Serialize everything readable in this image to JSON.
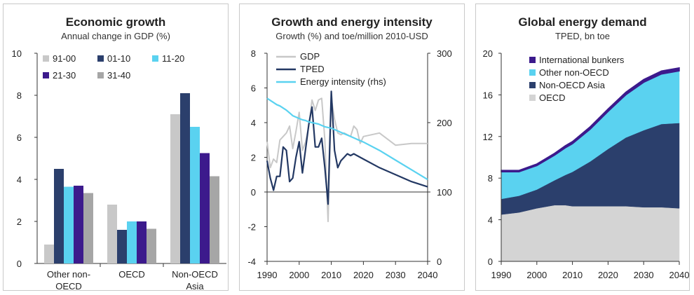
{
  "chart_data": [
    {
      "type": "bar",
      "title": "Economic growth",
      "subtitle": "Annual change in GDP (%)",
      "categories": [
        "Other non-OECD",
        "OECD",
        "Non-OECD Asia"
      ],
      "category_lines": [
        [
          "Other non-",
          "OECD"
        ],
        [
          "OECD"
        ],
        [
          "Non-OECD",
          "Asia"
        ]
      ],
      "series": [
        {
          "name": "91-00",
          "color": "#c8c8c8",
          "values": [
            0.9,
            2.8,
            7.1
          ]
        },
        {
          "name": "01-10",
          "color": "#2b3f6c",
          "values": [
            4.5,
            1.6,
            8.1
          ]
        },
        {
          "name": "11-20",
          "color": "#5ad2f0",
          "values": [
            3.65,
            2.0,
            6.5
          ]
        },
        {
          "name": "21-30",
          "color": "#3c1a8c",
          "values": [
            3.7,
            2.0,
            5.25
          ]
        },
        {
          "name": "31-40",
          "color": "#a6a6a6",
          "values": [
            3.35,
            1.65,
            4.15
          ]
        }
      ],
      "ylim": [
        0,
        10
      ],
      "yticks": [
        "0",
        "2",
        "4",
        "6",
        "8",
        "10"
      ],
      "legend": "top"
    },
    {
      "type": "line",
      "title": "Growth and energy intensity",
      "subtitle": "Growth (%) and toe/million 2010-USD",
      "x": [
        1990,
        1991,
        1992,
        1993,
        1994,
        1995,
        1996,
        1997,
        1998,
        1999,
        2000,
        2001,
        2002,
        2003,
        2004,
        2005,
        2006,
        2007,
        2008,
        2009,
        2010,
        2011,
        2012,
        2013,
        2014,
        2015,
        2016,
        2017,
        2018,
        2019,
        2020,
        2025,
        2030,
        2035,
        2040
      ],
      "xticks": [
        "1990",
        "2000",
        "2010",
        "2020",
        "2030",
        "2040"
      ],
      "xlim": [
        1990,
        2040
      ],
      "ylim": [
        -4,
        8
      ],
      "yticks": [
        "-4",
        "-2",
        "0",
        "2",
        "4",
        "6",
        "8"
      ],
      "y2lim": [
        0,
        300
      ],
      "y2ticks": [
        "0",
        "100",
        "200",
        "300"
      ],
      "series": [
        {
          "name": "GDP",
          "axis": "left",
          "color": "#c8c8c8",
          "y": [
            2.9,
            1.4,
            1.9,
            1.7,
            3.0,
            3.2,
            3.4,
            3.8,
            2.5,
            3.5,
            4.6,
            2.4,
            2.9,
            3.8,
            5.3,
            4.7,
            5.3,
            5.4,
            3.0,
            -1.7,
            5.4,
            4.2,
            3.4,
            3.3,
            3.4,
            3.3,
            3.2,
            3.8,
            3.6,
            2.8,
            3.2,
            3.4,
            2.7,
            2.8,
            2.8
          ]
        },
        {
          "name": "TPED",
          "axis": "left",
          "color": "#233863",
          "y": [
            1.8,
            0.8,
            0.1,
            0.9,
            0.9,
            2.6,
            2.4,
            0.6,
            0.8,
            2.0,
            2.9,
            1.1,
            2.5,
            3.9,
            4.9,
            2.6,
            2.6,
            3.1,
            1.4,
            -0.7,
            5.8,
            2.4,
            1.4,
            1.8,
            2.0,
            2.2,
            2.1,
            2.2,
            2.1,
            2.0,
            1.9,
            1.4,
            1.0,
            0.6,
            0.3
          ]
        },
        {
          "name": "Energy intensity (rhs)",
          "axis": "right",
          "color": "#5ad2f0",
          "y": [
            235,
            232,
            229,
            226,
            224,
            221,
            218,
            214,
            210,
            208,
            206,
            204,
            203,
            201,
            200,
            199,
            198,
            196,
            194,
            193,
            192,
            190,
            188,
            186,
            184,
            182,
            180,
            178,
            176,
            174,
            172,
            160,
            146,
            132,
            118
          ]
        }
      ],
      "legend": "top-left"
    },
    {
      "type": "area",
      "title": "Global energy demand",
      "subtitle": "TPED, bn toe",
      "x": [
        1990,
        1995,
        2000,
        2005,
        2008,
        2010,
        2015,
        2020,
        2025,
        2030,
        2035,
        2040
      ],
      "xticks": [
        "1990",
        "2000",
        "2010",
        "2020",
        "2030",
        "2040"
      ],
      "xlim": [
        1990,
        2040
      ],
      "ylim": [
        0,
        20
      ],
      "yticks": [
        "0",
        "4",
        "8",
        "12",
        "16",
        "20"
      ],
      "stacked": true,
      "series": [
        {
          "name": "OECD",
          "color": "#d4d4d4",
          "values": [
            4.5,
            4.7,
            5.1,
            5.4,
            5.4,
            5.3,
            5.3,
            5.3,
            5.3,
            5.2,
            5.2,
            5.1
          ]
        },
        {
          "name": "Non-OECD Asia",
          "color": "#2b3f6c",
          "values": [
            1.5,
            1.6,
            1.8,
            2.4,
            2.9,
            3.3,
            4.3,
            5.5,
            6.6,
            7.4,
            8.0,
            8.2
          ]
        },
        {
          "name": "Other non-OECD",
          "color": "#5ad2f0",
          "values": [
            2.6,
            2.3,
            2.3,
            2.4,
            2.6,
            2.7,
            3.1,
            3.6,
            4.1,
            4.6,
            4.8,
            5.0
          ]
        },
        {
          "name": "International bunkers",
          "color": "#3c1a8c",
          "values": [
            0.15,
            0.15,
            0.17,
            0.2,
            0.22,
            0.22,
            0.25,
            0.25,
            0.27,
            0.28,
            0.3,
            0.3
          ]
        }
      ],
      "legend": "top-left"
    }
  ]
}
